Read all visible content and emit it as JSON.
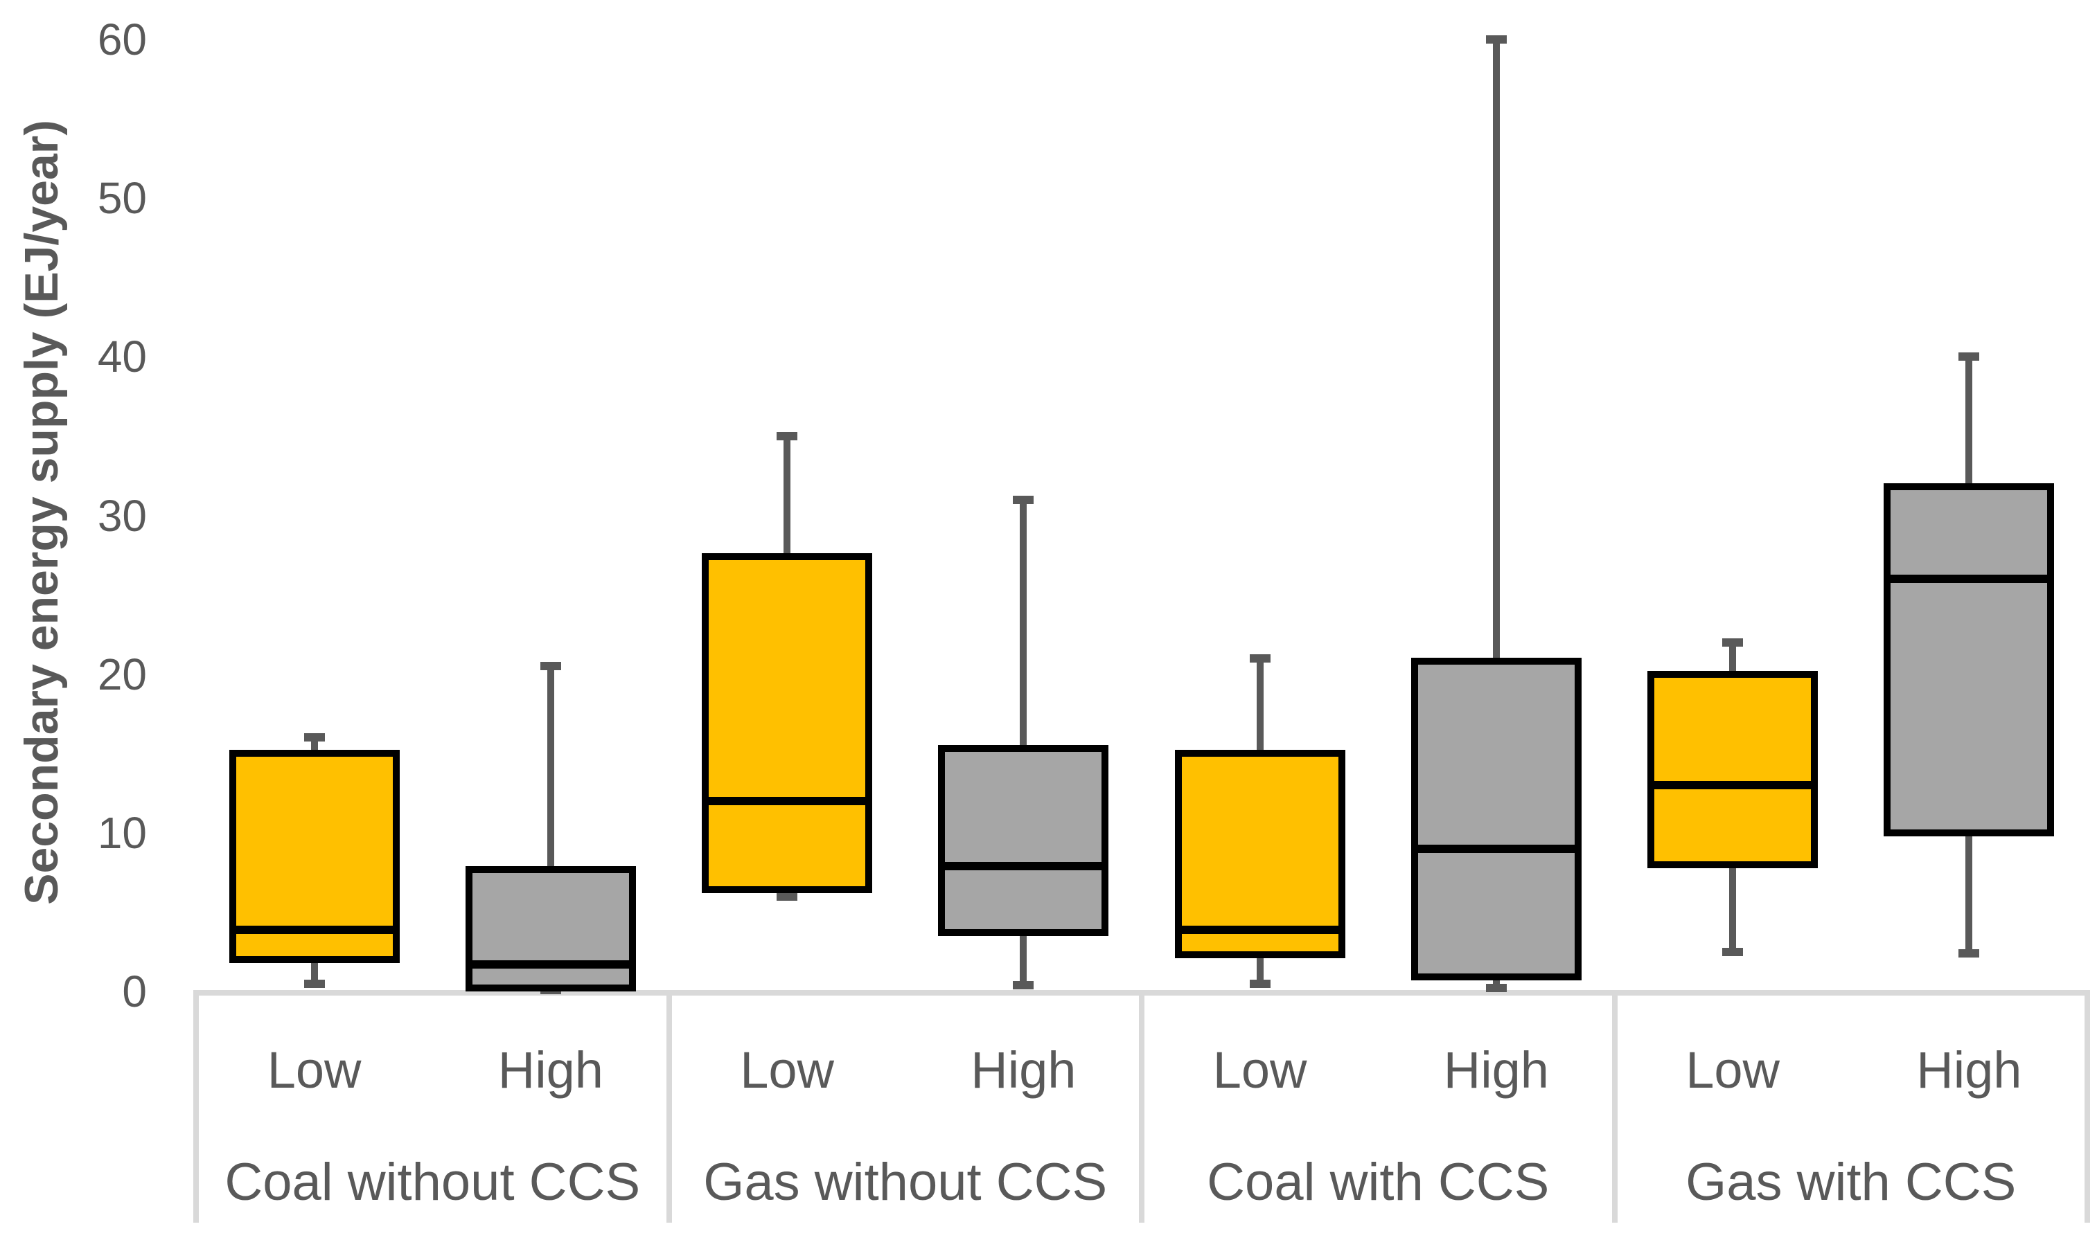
{
  "chart": {
    "ylabel": "Secondary energy supply (EJ/year)"
  },
  "chart_data": {
    "type": "box",
    "title": "",
    "ylabel": "Secondary energy supply (EJ/year)",
    "xlabel": "",
    "ylim": [
      0,
      60
    ],
    "yticks": [
      0,
      10,
      20,
      30,
      40,
      50,
      60
    ],
    "gridlines": false,
    "legend_position": "none",
    "subcategories": [
      "Low",
      "High"
    ],
    "groups": [
      {
        "label": "Coal without CCS",
        "boxes": [
          {
            "case": "Low",
            "min": 0.5,
            "q1": 2.0,
            "median": 3.9,
            "q3": 15.0,
            "max": 16.0
          },
          {
            "case": "High",
            "min": 0.1,
            "q1": 0.2,
            "median": 1.7,
            "q3": 7.7,
            "max": 20.5
          }
        ]
      },
      {
        "label": "Gas without CCS",
        "boxes": [
          {
            "case": "Low",
            "min": 6.0,
            "q1": 6.4,
            "median": 12.0,
            "q3": 27.4,
            "max": 35.0
          },
          {
            "case": "High",
            "min": 0.4,
            "q1": 3.7,
            "median": 7.9,
            "q3": 15.3,
            "max": 31.0
          }
        ]
      },
      {
        "label": "Coal with CCS",
        "boxes": [
          {
            "case": "Low",
            "min": 0.5,
            "q1": 2.3,
            "median": 3.9,
            "q3": 15.0,
            "max": 21.0
          },
          {
            "case": "High",
            "min": 0.2,
            "q1": 0.9,
            "median": 9.0,
            "q3": 20.8,
            "max": 60.0
          }
        ]
      },
      {
        "label": "Gas with CCS",
        "boxes": [
          {
            "case": "Low",
            "min": 2.5,
            "q1": 8.0,
            "median": 13.0,
            "q3": 20.0,
            "max": 22.0
          },
          {
            "case": "High",
            "min": 2.4,
            "q1": 10.0,
            "median": 26.0,
            "q3": 31.8,
            "max": 40.0
          }
        ]
      }
    ],
    "colors": {
      "low_fill": "#FFC000",
      "high_fill": "#A6A6A6",
      "box_border": "#000000",
      "whisker": "#595959",
      "text": "#595959",
      "axis_table_line": "#D9D9D9"
    }
  }
}
